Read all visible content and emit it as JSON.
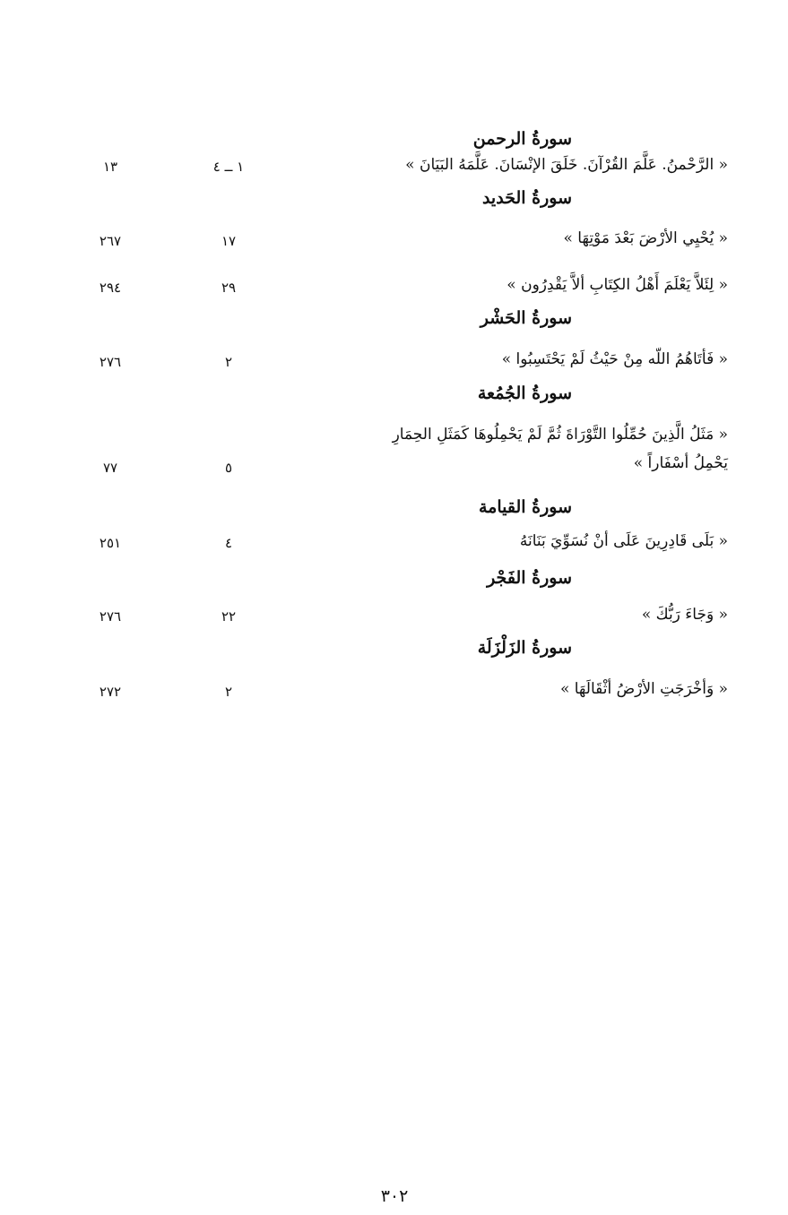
{
  "sections": [
    {
      "heading": "سورةُ الرحمن",
      "entries": [
        {
          "text": "« الرَّحْمنُ. عَلَّمَ القُرْآنَ. خَلَقَ الإنْسَانَ. عَلَّمَهُ البَيَانَ »",
          "ayah": "١ ــ ٤",
          "page": "١٣"
        }
      ]
    },
    {
      "heading": "سورةُ الحَديد",
      "entries": [
        {
          "text": "« يُحْيِي الأرْضَ بَعْدَ مَوْتِهَا »",
          "ayah": "١٧",
          "page": "٢٦٧"
        },
        {
          "text": "« لِئَلاَّ يَعْلَمَ أَهْلُ الكِتَابِ ألاَّ يَقْدِرُون »",
          "ayah": "٢٩",
          "page": "٢٩٤"
        }
      ]
    },
    {
      "heading": "سورةُ الحَشْر",
      "entries": [
        {
          "text": "« فَأتَاهُمُ اللّه مِنْ حَيْثُ لَمْ يَحْتَسِبُوا »",
          "ayah": "٢",
          "page": "٢٧٦"
        }
      ]
    },
    {
      "heading": "سورةُ الجُمُعة",
      "entries": [
        {
          "text": "« مَثَلُ الَّذِينَ حُمِّلُوا التَّوْرَاةَ ثُمَّ لَمْ يَحْمِلُوهَا كَمَثَلِ الحِمَارِ",
          "text2": "يَحْمِلُ أسْفَاراً »",
          "ayah": "٥",
          "page": "٧٧"
        }
      ]
    },
    {
      "heading": "سورةُ القيامة",
      "entries": [
        {
          "text": "« بَلَى قَادِرِينَ عَلَى أنْ نُسَوِّيَ بَنَانَهُ",
          "ayah": "٤",
          "page": "٢٥١"
        }
      ]
    },
    {
      "heading": "سورةُ الفَجْر",
      "entries": [
        {
          "text": "« وَجَاءَ رَبُّكَ »",
          "ayah": "٢٢",
          "page": "٢٧٦"
        }
      ]
    },
    {
      "heading": "سورةُ الزَلْزَلَة",
      "entries": [
        {
          "text": "« وَأخْرَجَتِ الأرْضُ أثْقَالَهَا »",
          "ayah": "٢",
          "page": "٢٧٢"
        }
      ]
    }
  ],
  "page_number": "٣٠٢"
}
